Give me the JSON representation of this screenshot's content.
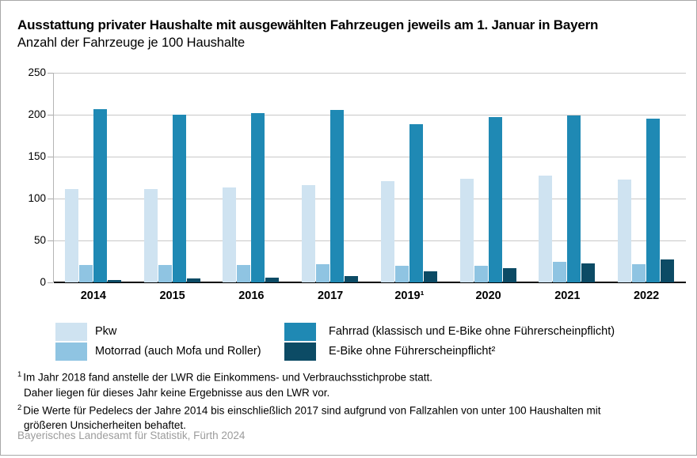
{
  "title": "Ausstattung privater Haushalte mit ausgewählten Fahrzeugen jeweils am 1. Januar in Bayern",
  "subtitle": "Anzahl der Fahrzeuge je 100 Haushalte",
  "chart_data": {
    "type": "bar",
    "categories": [
      "2014",
      "2015",
      "2016",
      "2017",
      "2019¹",
      "2020",
      "2021",
      "2022"
    ],
    "series": [
      {
        "key": "pkw",
        "name": "Pkw",
        "color": "#cfe3f1",
        "values": [
          111,
          111,
          113,
          116,
          121,
          124,
          127,
          123
        ]
      },
      {
        "key": "motorrad",
        "name": "Motorrad (auch Mofa und Roller)",
        "color": "#8fc4e2",
        "values": [
          21,
          21,
          21,
          22,
          20,
          20,
          25,
          22
        ]
      },
      {
        "key": "fahrrad",
        "name": "Fahrrad (klassisch und E-Bike ohne Führerscheinpflicht)",
        "color": "#1f89b4",
        "values": [
          207,
          200,
          202,
          206,
          189,
          197,
          199,
          195
        ]
      },
      {
        "key": "ebike",
        "name": "E-Bike ohne Führerscheinpflicht²",
        "color": "#0c4b65",
        "values": [
          3,
          5,
          6,
          8,
          13,
          17,
          23,
          27
        ]
      }
    ],
    "ylabel": "",
    "xlabel": "",
    "ylim": [
      0,
      250
    ],
    "yticks": [
      0,
      50,
      100,
      150,
      200,
      250
    ],
    "grid": true,
    "legend_position": "bottom"
  },
  "footnotes": [
    {
      "marker": "1",
      "line1": "Im Jahr 2018 fand anstelle der LWR die Einkommens- und Verbrauchsstichprobe statt.",
      "line2": "Daher liegen für dieses Jahr keine Ergebnisse aus den LWR vor."
    },
    {
      "marker": "2",
      "line1": "Die Werte für Pedelecs der Jahre 2014 bis einschließlich 2017 sind aufgrund von Fallzahlen von unter 100 Haushalten mit",
      "line2": "größeren Unsicherheiten behaftet."
    }
  ],
  "source": "Bayerisches Landesamt für Statistik, Fürth 2024"
}
